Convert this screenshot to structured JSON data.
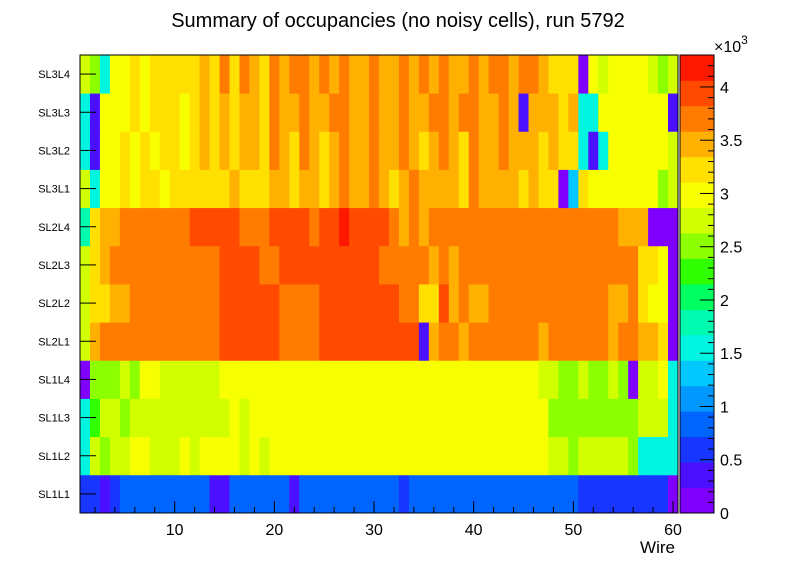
{
  "chart_data": {
    "type": "heatmap",
    "title": "Summary of occupancies (no noisy cells), run 5792",
    "xlabel": "Wire",
    "ylabel": "",
    "x_range": [
      0.5,
      60.5
    ],
    "x_ticks": [
      10,
      20,
      30,
      40,
      50,
      60
    ],
    "rows": [
      "SL1L1",
      "SL1L2",
      "SL1L3",
      "SL1L4",
      "SL2L1",
      "SL2L2",
      "SL2L3",
      "SL2L4",
      "SL3L1",
      "SL3L2",
      "SL3L3",
      "SL3L4"
    ],
    "z_range": [
      0,
      4300
    ],
    "z_multiplier": "×10",
    "z_multiplier_exp": "3",
    "z_ticks": [
      {
        "value": 0,
        "label": "0"
      },
      {
        "value": 500,
        "label": "0.5"
      },
      {
        "value": 1000,
        "label": "1"
      },
      {
        "value": 1500,
        "label": "1.5"
      },
      {
        "value": 2000,
        "label": "2"
      },
      {
        "value": 2500,
        "label": "2.5"
      },
      {
        "value": 3000,
        "label": "3"
      },
      {
        "value": 3500,
        "label": "3.5"
      },
      {
        "value": 4000,
        "label": "4"
      }
    ],
    "palette": [
      "#7f00ff",
      "#4a10ff",
      "#1836ff",
      "#0064ff",
      "#0098ff",
      "#00c8ff",
      "#00f5e0",
      "#00fab0",
      "#00ff60",
      "#30ff00",
      "#8cff00",
      "#d2ff00",
      "#f8ff00",
      "#ffe000",
      "#ffb000",
      "#ff7c00",
      "#ff4a00",
      "#ff1800"
    ],
    "z_values": [
      [
        550,
        550,
        450,
        600,
        800,
        950,
        800,
        950,
        950,
        800,
        950,
        800,
        950,
        450,
        450,
        950,
        950,
        950,
        950,
        800,
        950,
        450,
        950,
        950,
        950,
        950,
        950,
        950,
        950,
        950,
        950,
        950,
        550,
        950,
        800,
        950,
        800,
        950,
        950,
        800,
        950,
        800,
        950,
        950,
        800,
        950,
        800,
        950,
        950,
        950,
        550,
        550,
        550,
        550,
        550,
        550,
        550,
        550,
        550,
        100
      ],
      [
        1500,
        2800,
        2500,
        2700,
        2700,
        2900,
        2900,
        2800,
        2700,
        2800,
        2900,
        2800,
        2900,
        2900,
        3000,
        2900,
        2800,
        2900,
        2700,
        2900,
        2900,
        3000,
        2900,
        3100,
        3000,
        3000,
        3100,
        3000,
        3100,
        3100,
        3100,
        3000,
        3100,
        3000,
        3100,
        3000,
        3000,
        3100,
        3000,
        3100,
        3000,
        3000,
        3000,
        3100,
        3000,
        3000,
        3000,
        2700,
        2700,
        2600,
        2700,
        2700,
        2800,
        2700,
        2700,
        2600,
        1600,
        1600,
        1500,
        1600
      ],
      [
        1500,
        2300,
        2700,
        2700,
        2500,
        2800,
        2700,
        2800,
        2700,
        2700,
        2700,
        2700,
        2800,
        2800,
        2800,
        2900,
        2800,
        2900,
        2900,
        2900,
        2900,
        2900,
        3000,
        2900,
        3000,
        3000,
        3000,
        3000,
        3000,
        3000,
        3000,
        3000,
        3000,
        3000,
        3000,
        3000,
        3000,
        3000,
        3000,
        3000,
        3000,
        3000,
        3000,
        3000,
        3000,
        3000,
        3000,
        2500,
        2500,
        2500,
        2500,
        2500,
        2500,
        2500,
        2500,
        2600,
        2700,
        2700,
        2700,
        1500
      ],
      [
        200,
        2400,
        2500,
        2600,
        2800,
        2600,
        2900,
        2900,
        2800,
        2700,
        2800,
        2800,
        2800,
        2700,
        2900,
        3000,
        2900,
        3000,
        2900,
        3000,
        3000,
        2900,
        3000,
        3100,
        3000,
        3100,
        3100,
        3000,
        3100,
        3000,
        3100,
        3000,
        3100,
        3000,
        3000,
        3100,
        3000,
        3000,
        3100,
        3100,
        3000,
        3000,
        3100,
        3000,
        3100,
        3000,
        2800,
        2700,
        2500,
        2500,
        2700,
        2500,
        2600,
        2700,
        2500,
        200,
        2700,
        2700,
        2900,
        1500
      ],
      [
        2800,
        3400,
        3800,
        3800,
        3600,
        3800,
        3600,
        3800,
        3800,
        3600,
        3800,
        3800,
        3800,
        3800,
        4000,
        4000,
        4000,
        4000,
        4000,
        4000,
        3800,
        3800,
        3800,
        3800,
        4000,
        4000,
        4000,
        4000,
        4000,
        4000,
        4000,
        4000,
        4000,
        4000,
        300,
        3500,
        3800,
        3800,
        3500,
        3800,
        3800,
        3800,
        3800,
        3800,
        3800,
        3800,
        3500,
        3800,
        3800,
        3800,
        3800,
        3800,
        3800,
        3500,
        3800,
        3800,
        3500,
        3500,
        3200,
        200
      ],
      [
        2800,
        3200,
        3300,
        3400,
        3500,
        3600,
        3600,
        3600,
        3600,
        3600,
        3800,
        3800,
        3800,
        3800,
        4000,
        4000,
        4000,
        4000,
        4000,
        4000,
        3800,
        3800,
        3800,
        3800,
        4000,
        4000,
        4000,
        4000,
        4000,
        4000,
        4000,
        4000,
        3800,
        3800,
        3300,
        3300,
        4000,
        3500,
        3800,
        3500,
        3500,
        3800,
        3800,
        3800,
        3800,
        3800,
        3600,
        3800,
        3800,
        3600,
        3600,
        3600,
        3600,
        3500,
        3500,
        3600,
        3200,
        3000,
        3100,
        200
      ],
      [
        2800,
        3200,
        3400,
        3600,
        3600,
        3700,
        3600,
        3700,
        3600,
        3600,
        3800,
        3800,
        3800,
        3800,
        4000,
        4000,
        4000,
        4000,
        3800,
        3800,
        4000,
        4000,
        4000,
        4000,
        4000,
        4000,
        4000,
        4000,
        4000,
        4000,
        3800,
        3800,
        3800,
        3800,
        3800,
        3500,
        3800,
        3500,
        3800,
        3800,
        3700,
        3700,
        3700,
        3700,
        3700,
        3700,
        3600,
        3800,
        3800,
        3700,
        3700,
        3700,
        3700,
        3600,
        3600,
        3600,
        3200,
        3200,
        3000,
        200
      ],
      [
        1800,
        3200,
        3500,
        3500,
        3600,
        3800,
        3800,
        3800,
        3800,
        3800,
        3800,
        4000,
        4000,
        4000,
        4000,
        4000,
        3800,
        3800,
        3800,
        4000,
        4000,
        4000,
        4000,
        3800,
        4000,
        4000,
        4200,
        4000,
        4000,
        4000,
        4000,
        3800,
        3500,
        3800,
        3500,
        3800,
        3600,
        3600,
        3800,
        3800,
        3800,
        3800,
        3800,
        3800,
        3800,
        3800,
        3800,
        3800,
        3800,
        3800,
        3800,
        3600,
        3600,
        3600,
        3500,
        3500,
        3400,
        200,
        200,
        200
      ],
      [
        2800,
        1600,
        3100,
        3100,
        3200,
        3100,
        3300,
        3200,
        3100,
        3300,
        3200,
        3300,
        3300,
        3200,
        3300,
        3400,
        3200,
        3300,
        3200,
        3400,
        3500,
        3300,
        3500,
        3500,
        3300,
        3500,
        3600,
        3500,
        3500,
        3600,
        3500,
        3300,
        3500,
        3800,
        3500,
        3500,
        3500,
        3500,
        3300,
        3600,
        3500,
        3400,
        3500,
        3500,
        3300,
        3500,
        3300,
        3300,
        200,
        1300,
        3200,
        3000,
        3000,
        3000,
        3000,
        3000,
        2900,
        2900,
        2600,
        2800
      ],
      [
        1500,
        300,
        3100,
        3000,
        3200,
        3100,
        3300,
        3100,
        3200,
        3300,
        3100,
        3300,
        3400,
        3300,
        3400,
        3300,
        3500,
        3500,
        3300,
        3600,
        3500,
        3300,
        3600,
        3500,
        3300,
        3500,
        3600,
        3500,
        3500,
        3600,
        3500,
        3400,
        3600,
        3500,
        3300,
        3500,
        3600,
        3500,
        3300,
        3600,
        3500,
        3400,
        3600,
        3500,
        3400,
        3500,
        3300,
        3400,
        3300,
        3200,
        1500,
        300,
        1500,
        3000,
        3000,
        3000,
        2900,
        2900,
        2900,
        2700
      ],
      [
        1500,
        300,
        2900,
        3000,
        3100,
        3200,
        3100,
        3300,
        3200,
        3300,
        3100,
        3300,
        3500,
        3300,
        3500,
        3300,
        3500,
        3500,
        3300,
        3600,
        3500,
        3500,
        3600,
        3500,
        3500,
        3600,
        3600,
        3500,
        3500,
        3600,
        3500,
        3500,
        3600,
        3500,
        3500,
        3600,
        3600,
        3500,
        3600,
        3600,
        3500,
        3500,
        3600,
        3500,
        300,
        3500,
        3500,
        3400,
        3300,
        3400,
        1500,
        1500,
        3000,
        3000,
        3000,
        3000,
        2900,
        2900,
        2900,
        300
      ],
      [
        2800,
        2400,
        1500,
        3100,
        3100,
        3200,
        3100,
        3300,
        3200,
        3300,
        3300,
        3300,
        3500,
        3300,
        3700,
        3300,
        3600,
        3500,
        3300,
        3700,
        3500,
        3700,
        3600,
        3500,
        3700,
        3500,
        3700,
        3500,
        3500,
        3800,
        3500,
        3400,
        3600,
        3500,
        3600,
        3500,
        3800,
        3500,
        3500,
        3800,
        3500,
        3600,
        3700,
        3500,
        3800,
        3600,
        3500,
        3300,
        3300,
        3300,
        200,
        3000,
        2800,
        3000,
        3000,
        3000,
        2900,
        2800,
        2500,
        2800
      ]
    ]
  }
}
